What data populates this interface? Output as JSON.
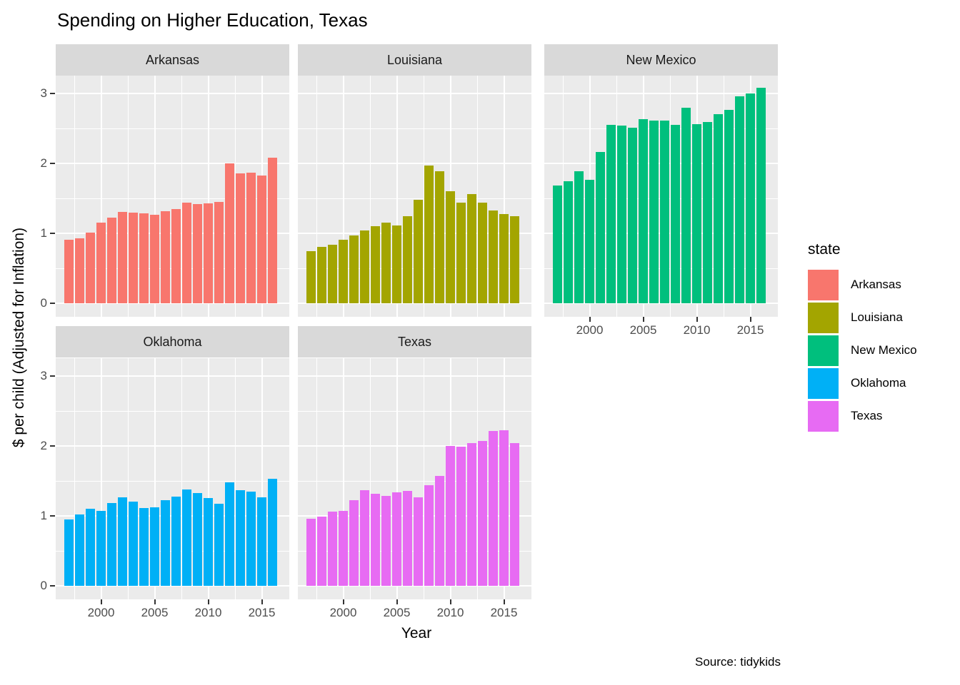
{
  "title": "Spending on Higher Education, Texas",
  "caption": "Source: tidykids",
  "axes": {
    "x_title": "Year",
    "y_title": "$ per child (Adjusted for Inflation)",
    "x_tick_labels": [
      "2000",
      "2005",
      "2010",
      "2015"
    ],
    "y_tick_labels": [
      "0",
      "1",
      "2",
      "3"
    ]
  },
  "legend": {
    "title": "state",
    "position": "right"
  },
  "style_colors": {
    "panel_background": "#EBEBEB",
    "strip_background": "#D9D9D9",
    "gridline": "#FFFFFF",
    "tick_text": "#4D4D4D",
    "tick_mark": "#333333"
  },
  "chart_data": {
    "type": "bar",
    "title": "Spending on Higher Education, Texas",
    "faceted_by": "state",
    "facets": [
      "Arkansas",
      "Louisiana",
      "New Mexico",
      "Oklahoma",
      "Texas"
    ],
    "xlabel": "Year",
    "ylabel": "$ per child (Adjusted for Inflation)",
    "x": [
      1997,
      1998,
      1999,
      2000,
      2001,
      2002,
      2003,
      2004,
      2005,
      2006,
      2007,
      2008,
      2009,
      2010,
      2011,
      2012,
      2013,
      2014,
      2015,
      2016
    ],
    "x_ticks": [
      2000,
      2005,
      2010,
      2015
    ],
    "y_ticks": [
      0,
      1,
      2,
      3
    ],
    "ylim": [
      0,
      3.25
    ],
    "grid": true,
    "legend_position": "right",
    "series": [
      {
        "name": "Arkansas",
        "color": "#F8766D",
        "values": [
          0.91,
          0.93,
          1.01,
          1.15,
          1.22,
          1.31,
          1.3,
          1.29,
          1.27,
          1.32,
          1.35,
          1.44,
          1.42,
          1.43,
          1.45,
          2.0,
          1.86,
          1.87,
          1.83,
          2.08
        ]
      },
      {
        "name": "Louisiana",
        "color": "#A3A500",
        "values": [
          0.74,
          0.81,
          0.84,
          0.91,
          0.97,
          1.04,
          1.1,
          1.15,
          1.11,
          1.24,
          1.48,
          1.97,
          1.89,
          1.6,
          1.44,
          1.56,
          1.44,
          1.33,
          1.28,
          1.24
        ]
      },
      {
        "name": "New Mexico",
        "color": "#00BF7D",
        "values": [
          1.68,
          1.74,
          1.89,
          1.77,
          2.16,
          2.55,
          2.54,
          2.51,
          2.63,
          2.61,
          2.61,
          2.55,
          2.8,
          2.56,
          2.59,
          2.7,
          2.77,
          2.96,
          3.0,
          3.08
        ]
      },
      {
        "name": "Oklahoma",
        "color": "#00B0F6",
        "values": [
          0.95,
          1.02,
          1.1,
          1.07,
          1.18,
          1.27,
          1.2,
          1.11,
          1.12,
          1.22,
          1.28,
          1.38,
          1.33,
          1.26,
          1.17,
          1.48,
          1.37,
          1.35,
          1.27,
          1.53
        ]
      },
      {
        "name": "Texas",
        "color": "#E76BF3",
        "values": [
          0.96,
          0.99,
          1.06,
          1.07,
          1.22,
          1.37,
          1.32,
          1.29,
          1.34,
          1.36,
          1.27,
          1.44,
          1.57,
          2.0,
          1.99,
          2.04,
          2.07,
          2.21,
          2.22,
          2.04
        ]
      }
    ]
  }
}
